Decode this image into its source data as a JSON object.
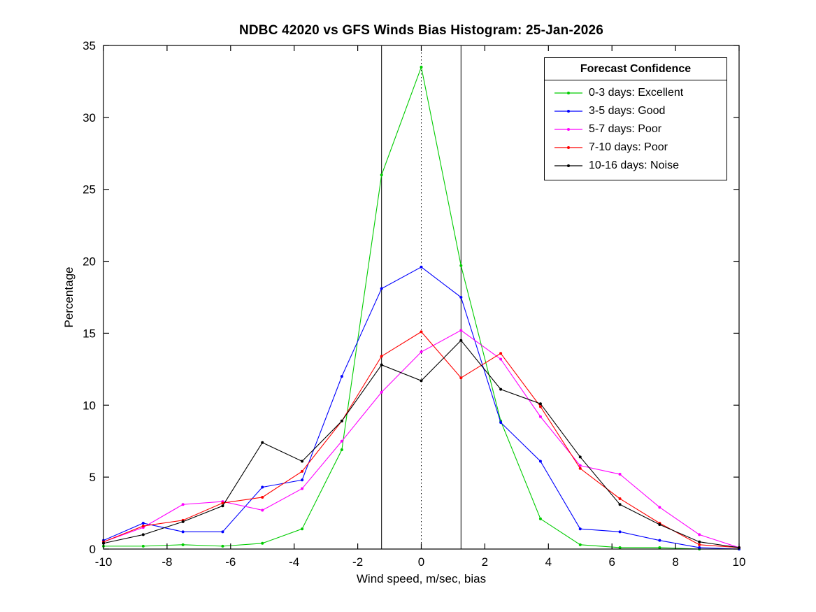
{
  "chart_data": {
    "type": "line",
    "title": "NDBC 42020 vs GFS Winds Bias Histogram: 25-Jan-2026",
    "xlabel": "Wind speed, m/sec, bias",
    "ylabel": "Percentage",
    "xlim": [
      -10,
      10
    ],
    "ylim": [
      0,
      35
    ],
    "xticks": [
      -10,
      -8,
      -6,
      -4,
      -2,
      0,
      2,
      4,
      6,
      8,
      10
    ],
    "yticks": [
      0,
      5,
      10,
      15,
      20,
      25,
      30,
      35
    ],
    "grid": false,
    "legend_title": "Forecast Confidence",
    "legend_position": "top-right",
    "x": [
      -10,
      -8.75,
      -7.5,
      -6.25,
      -5,
      -3.75,
      -2.5,
      -1.25,
      0,
      1.25,
      2.5,
      3.75,
      5,
      6.25,
      7.5,
      8.75,
      10
    ],
    "series": [
      {
        "name": "0-3 days: Excellent",
        "color": "#00cc00",
        "values": [
          0.2,
          0.2,
          0.3,
          0.2,
          0.4,
          1.4,
          6.9,
          26.0,
          33.5,
          19.7,
          8.9,
          2.1,
          0.3,
          0.1,
          0.1,
          0,
          0
        ]
      },
      {
        "name": "3-5 days: Good",
        "color": "#0000ff",
        "values": [
          0.6,
          1.8,
          1.2,
          1.2,
          4.3,
          4.8,
          12.0,
          18.1,
          19.6,
          17.5,
          8.8,
          6.1,
          1.4,
          1.2,
          0.6,
          0.1,
          0
        ]
      },
      {
        "name": "5-7 days: Poor",
        "color": "#ff00ff",
        "values": [
          0.5,
          1.5,
          3.1,
          3.3,
          2.7,
          4.2,
          7.5,
          10.9,
          13.7,
          15.2,
          13.2,
          9.2,
          5.8,
          5.2,
          2.9,
          1.0,
          0.1
        ]
      },
      {
        "name": "7-10 days: Poor",
        "color": "#ff0000",
        "values": [
          0.5,
          1.6,
          2.0,
          3.2,
          3.6,
          5.4,
          8.9,
          13.4,
          15.1,
          11.9,
          13.6,
          9.9,
          5.6,
          3.5,
          1.8,
          0.3,
          0.1
        ]
      },
      {
        "name": "10-16 days: Noise",
        "color": "#000000",
        "values": [
          0.4,
          1.0,
          1.9,
          3.0,
          7.4,
          6.1,
          8.9,
          12.8,
          11.7,
          14.5,
          11.1,
          10.1,
          6.4,
          3.1,
          1.7,
          0.5,
          0.1
        ]
      }
    ],
    "vlines": [
      {
        "x": -1.25,
        "style": "solid",
        "color": "#000000"
      },
      {
        "x": 0,
        "style": "dotted",
        "color": "#000000"
      },
      {
        "x": 1.25,
        "style": "solid",
        "color": "#000000"
      }
    ]
  }
}
